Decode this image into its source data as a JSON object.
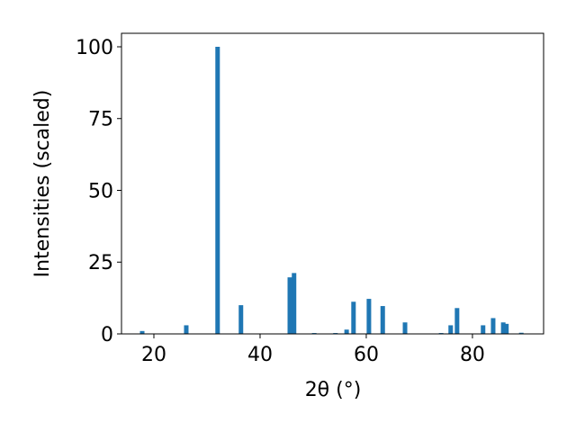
{
  "chart_data": {
    "type": "bar",
    "x_label": "2θ (°)",
    "y_label": "Intensities (scaled)",
    "x": [
      17.8,
      26.1,
      32.0,
      36.4,
      45.6,
      46.4,
      50.2,
      54.2,
      56.3,
      57.6,
      60.5,
      63.1,
      67.3,
      74.1,
      75.9,
      77.1,
      82.0,
      83.9,
      85.8,
      86.4,
      89.2
    ],
    "values": [
      1,
      3,
      100,
      10,
      19.7,
      21.2,
      0.3,
      0.3,
      1.5,
      11.2,
      12.2,
      9.7,
      4,
      0.3,
      3,
      9,
      3,
      5.5,
      4,
      3.5,
      0.4
    ],
    "color": "#1f77b4",
    "xlim": [
      13.9,
      93.4
    ],
    "xticks": [
      20,
      40,
      60,
      80
    ],
    "ylim": [
      0,
      104.7
    ],
    "yticks": [
      0,
      25,
      50,
      75,
      100
    ],
    "grid": false
  }
}
